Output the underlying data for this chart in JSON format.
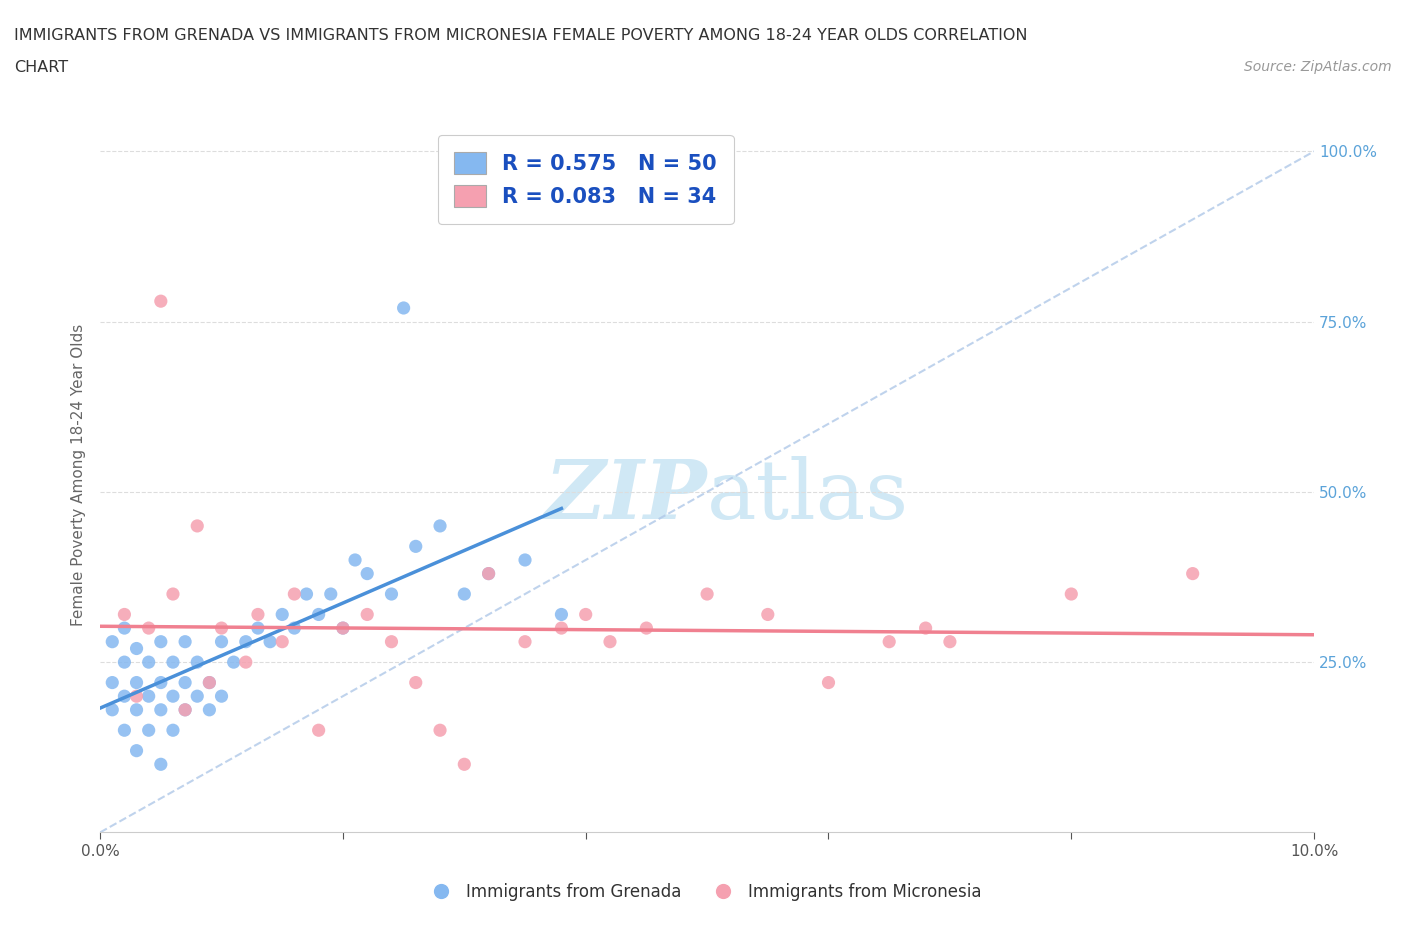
{
  "title_line1": "IMMIGRANTS FROM GRENADA VS IMMIGRANTS FROM MICRONESIA FEMALE POVERTY AMONG 18-24 YEAR OLDS CORRELATION",
  "title_line2": "CHART",
  "source_text": "Source: ZipAtlas.com",
  "ylabel": "Female Poverty Among 18-24 Year Olds",
  "xlim": [
    0.0,
    0.1
  ],
  "ylim": [
    0.0,
    1.05
  ],
  "xticks": [
    0.0,
    0.02,
    0.04,
    0.06,
    0.08,
    0.1
  ],
  "xticklabels": [
    "0.0%",
    "",
    "",
    "",
    "",
    "10.0%"
  ],
  "yticks": [
    0.0,
    0.25,
    0.5,
    0.75,
    1.0
  ],
  "yticklabels": [
    "",
    "25.0%",
    "50.0%",
    "75.0%",
    "100.0%"
  ],
  "grenada_color": "#85b8f0",
  "micronesia_color": "#f5a0b0",
  "grenada_R": 0.575,
  "grenada_N": 50,
  "micronesia_R": 0.083,
  "micronesia_N": 34,
  "legend_text_color": "#1a4fbf",
  "regression_line_color_grenada": "#4a90d9",
  "regression_line_color_micronesia": "#f08090",
  "watermark_color": "#d0e8f5",
  "background_color": "#ffffff",
  "grenada_x": [
    0.001,
    0.001,
    0.001,
    0.002,
    0.002,
    0.002,
    0.002,
    0.003,
    0.003,
    0.003,
    0.003,
    0.004,
    0.004,
    0.004,
    0.005,
    0.005,
    0.005,
    0.005,
    0.006,
    0.006,
    0.006,
    0.007,
    0.007,
    0.007,
    0.008,
    0.008,
    0.009,
    0.009,
    0.01,
    0.01,
    0.011,
    0.012,
    0.013,
    0.014,
    0.015,
    0.016,
    0.017,
    0.018,
    0.019,
    0.02,
    0.021,
    0.022,
    0.024,
    0.025,
    0.026,
    0.028,
    0.03,
    0.032,
    0.035,
    0.038
  ],
  "grenada_y": [
    0.18,
    0.22,
    0.28,
    0.15,
    0.2,
    0.25,
    0.3,
    0.12,
    0.18,
    0.22,
    0.27,
    0.15,
    0.2,
    0.25,
    0.1,
    0.18,
    0.22,
    0.28,
    0.15,
    0.2,
    0.25,
    0.18,
    0.22,
    0.28,
    0.2,
    0.25,
    0.18,
    0.22,
    0.2,
    0.28,
    0.25,
    0.28,
    0.3,
    0.28,
    0.32,
    0.3,
    0.35,
    0.32,
    0.35,
    0.3,
    0.4,
    0.38,
    0.35,
    0.77,
    0.42,
    0.45,
    0.35,
    0.38,
    0.4,
    0.32
  ],
  "micronesia_x": [
    0.002,
    0.003,
    0.004,
    0.005,
    0.006,
    0.007,
    0.008,
    0.009,
    0.01,
    0.012,
    0.013,
    0.015,
    0.016,
    0.018,
    0.02,
    0.022,
    0.024,
    0.026,
    0.028,
    0.03,
    0.032,
    0.035,
    0.038,
    0.04,
    0.042,
    0.045,
    0.05,
    0.055,
    0.06,
    0.065,
    0.068,
    0.07,
    0.08,
    0.09
  ],
  "micronesia_y": [
    0.32,
    0.2,
    0.3,
    0.78,
    0.35,
    0.18,
    0.45,
    0.22,
    0.3,
    0.25,
    0.32,
    0.28,
    0.35,
    0.15,
    0.3,
    0.32,
    0.28,
    0.22,
    0.15,
    0.1,
    0.38,
    0.28,
    0.3,
    0.32,
    0.28,
    0.3,
    0.35,
    0.32,
    0.22,
    0.28,
    0.3,
    0.28,
    0.35,
    0.38
  ]
}
